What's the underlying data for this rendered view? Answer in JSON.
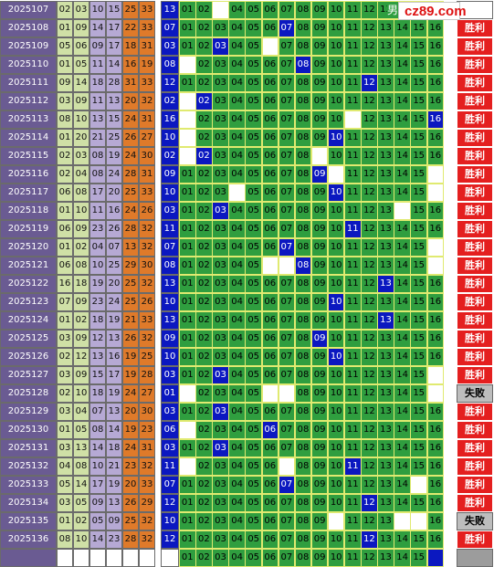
{
  "watermark": {
    "icon": "yellow-square-icon",
    "text": "cz89.com"
  },
  "ghost_char": "男",
  "columns": [
    "01",
    "02",
    "03",
    "04",
    "05",
    "06",
    "07",
    "08",
    "09",
    "10",
    "11",
    "12",
    "13",
    "14",
    "15",
    "16"
  ],
  "rows": [
    {
      "period": "2025107",
      "nums": [
        "02",
        "03",
        "10",
        "15",
        "25",
        "33"
      ],
      "blue": "13",
      "hit": null,
      "blanks": [
        3
      ],
      "result": ""
    },
    {
      "period": "2025108",
      "nums": [
        "01",
        "09",
        "14",
        "17",
        "22",
        "33"
      ],
      "blue": "07",
      "hit": 7,
      "blanks": [],
      "result": "胜利"
    },
    {
      "period": "2025109",
      "nums": [
        "05",
        "06",
        "09",
        "17",
        "18",
        "31"
      ],
      "blue": "03",
      "hit": 3,
      "blanks": [
        6
      ],
      "result": "胜利"
    },
    {
      "period": "2025110",
      "nums": [
        "01",
        "05",
        "11",
        "14",
        "16",
        "19"
      ],
      "blue": "08",
      "hit": 8,
      "blanks": [
        1
      ],
      "result": "胜利"
    },
    {
      "period": "2025111",
      "nums": [
        "09",
        "14",
        "18",
        "28",
        "31",
        "33"
      ],
      "blue": "12",
      "hit": 12,
      "blanks": [],
      "result": "胜利"
    },
    {
      "period": "2025112",
      "nums": [
        "03",
        "09",
        "11",
        "13",
        "20",
        "32"
      ],
      "blue": "02",
      "hit": 2,
      "blanks": [
        1
      ],
      "result": "胜利"
    },
    {
      "period": "2025113",
      "nums": [
        "08",
        "10",
        "13",
        "15",
        "24",
        "31"
      ],
      "blue": "16",
      "hit": 16,
      "blanks": [
        1,
        11
      ],
      "result": "胜利"
    },
    {
      "period": "2025114",
      "nums": [
        "01",
        "20",
        "21",
        "25",
        "26",
        "27"
      ],
      "blue": "10",
      "hit": 10,
      "blanks": [
        1
      ],
      "result": "胜利"
    },
    {
      "period": "2025115",
      "nums": [
        "02",
        "03",
        "08",
        "19",
        "24",
        "30"
      ],
      "blue": "02",
      "hit": 2,
      "blanks": [
        1,
        9
      ],
      "result": "胜利"
    },
    {
      "period": "2025116",
      "nums": [
        "02",
        "04",
        "08",
        "24",
        "28",
        "31"
      ],
      "blue": "09",
      "hit": 9,
      "blanks": [
        10,
        16
      ],
      "result": "胜利"
    },
    {
      "period": "2025117",
      "nums": [
        "06",
        "08",
        "17",
        "20",
        "25",
        "33"
      ],
      "blue": "10",
      "hit": 10,
      "blanks": [
        4,
        16
      ],
      "result": "胜利"
    },
    {
      "period": "2025118",
      "nums": [
        "01",
        "10",
        "11",
        "16",
        "24",
        "26"
      ],
      "blue": "03",
      "hit": 3,
      "blanks": [
        14
      ],
      "result": "胜利"
    },
    {
      "period": "2025119",
      "nums": [
        "06",
        "09",
        "23",
        "26",
        "28",
        "32"
      ],
      "blue": "11",
      "hit": 11,
      "blanks": [],
      "result": "胜利"
    },
    {
      "period": "2025120",
      "nums": [
        "01",
        "02",
        "04",
        "07",
        "13",
        "32"
      ],
      "blue": "07",
      "hit": 7,
      "blanks": [
        16
      ],
      "result": "胜利"
    },
    {
      "period": "2025121",
      "nums": [
        "06",
        "08",
        "10",
        "25",
        "29",
        "30"
      ],
      "blue": "08",
      "hit": 8,
      "blanks": [
        6,
        7,
        16
      ],
      "result": "胜利"
    },
    {
      "period": "2025122",
      "nums": [
        "16",
        "18",
        "19",
        "20",
        "25",
        "32"
      ],
      "blue": "13",
      "hit": 13,
      "blanks": [],
      "result": "胜利"
    },
    {
      "period": "2025123",
      "nums": [
        "07",
        "09",
        "23",
        "24",
        "25",
        "26"
      ],
      "blue": "10",
      "hit": 10,
      "blanks": [],
      "result": "胜利"
    },
    {
      "period": "2025124",
      "nums": [
        "01",
        "02",
        "18",
        "19",
        "21",
        "33"
      ],
      "blue": "13",
      "hit": 13,
      "blanks": [],
      "result": "胜利"
    },
    {
      "period": "2025125",
      "nums": [
        "03",
        "09",
        "12",
        "13",
        "26",
        "32"
      ],
      "blue": "09",
      "hit": 9,
      "blanks": [],
      "result": "胜利"
    },
    {
      "period": "2025126",
      "nums": [
        "02",
        "12",
        "13",
        "16",
        "19",
        "25"
      ],
      "blue": "10",
      "hit": 10,
      "blanks": [],
      "result": "胜利"
    },
    {
      "period": "2025127",
      "nums": [
        "03",
        "09",
        "15",
        "17",
        "19",
        "28"
      ],
      "blue": "03",
      "hit": 3,
      "blanks": [
        16
      ],
      "result": "胜利"
    },
    {
      "period": "2025128",
      "nums": [
        "02",
        "10",
        "18",
        "19",
        "24",
        "27"
      ],
      "blue": "01",
      "hit": null,
      "blanks": [
        1,
        6,
        7,
        16
      ],
      "result": "失败"
    },
    {
      "period": "2025129",
      "nums": [
        "03",
        "04",
        "07",
        "13",
        "20",
        "30"
      ],
      "blue": "03",
      "hit": 3,
      "blanks": [],
      "result": "胜利"
    },
    {
      "period": "2025130",
      "nums": [
        "01",
        "05",
        "08",
        "14",
        "19",
        "23"
      ],
      "blue": "06",
      "hit": 6,
      "blanks": [
        1
      ],
      "result": "胜利"
    },
    {
      "period": "2025131",
      "nums": [
        "03",
        "13",
        "14",
        "18",
        "24",
        "31"
      ],
      "blue": "03",
      "hit": 3,
      "blanks": [],
      "result": "胜利"
    },
    {
      "period": "2025132",
      "nums": [
        "04",
        "08",
        "10",
        "21",
        "23",
        "32"
      ],
      "blue": "11",
      "hit": 11,
      "blanks": [
        1,
        7
      ],
      "result": "胜利"
    },
    {
      "period": "2025133",
      "nums": [
        "05",
        "14",
        "17",
        "19",
        "20",
        "33"
      ],
      "blue": "07",
      "hit": 7,
      "blanks": [
        15
      ],
      "result": "胜利"
    },
    {
      "period": "2025134",
      "nums": [
        "03",
        "05",
        "09",
        "13",
        "26",
        "29"
      ],
      "blue": "12",
      "hit": 12,
      "blanks": [],
      "result": "胜利"
    },
    {
      "period": "2025135",
      "nums": [
        "01",
        "02",
        "05",
        "09",
        "25",
        "32"
      ],
      "blue": "10",
      "hit": null,
      "blanks": [
        10,
        14,
        15
      ],
      "result": "失败"
    },
    {
      "period": "2025136",
      "nums": [
        "08",
        "10",
        "14",
        "23",
        "28",
        "32"
      ],
      "blue": "12",
      "hit": 12,
      "blanks": [],
      "result": "胜利"
    }
  ],
  "footer": {
    "hit": 16,
    "blanks": [],
    "period": "",
    "result": ""
  }
}
